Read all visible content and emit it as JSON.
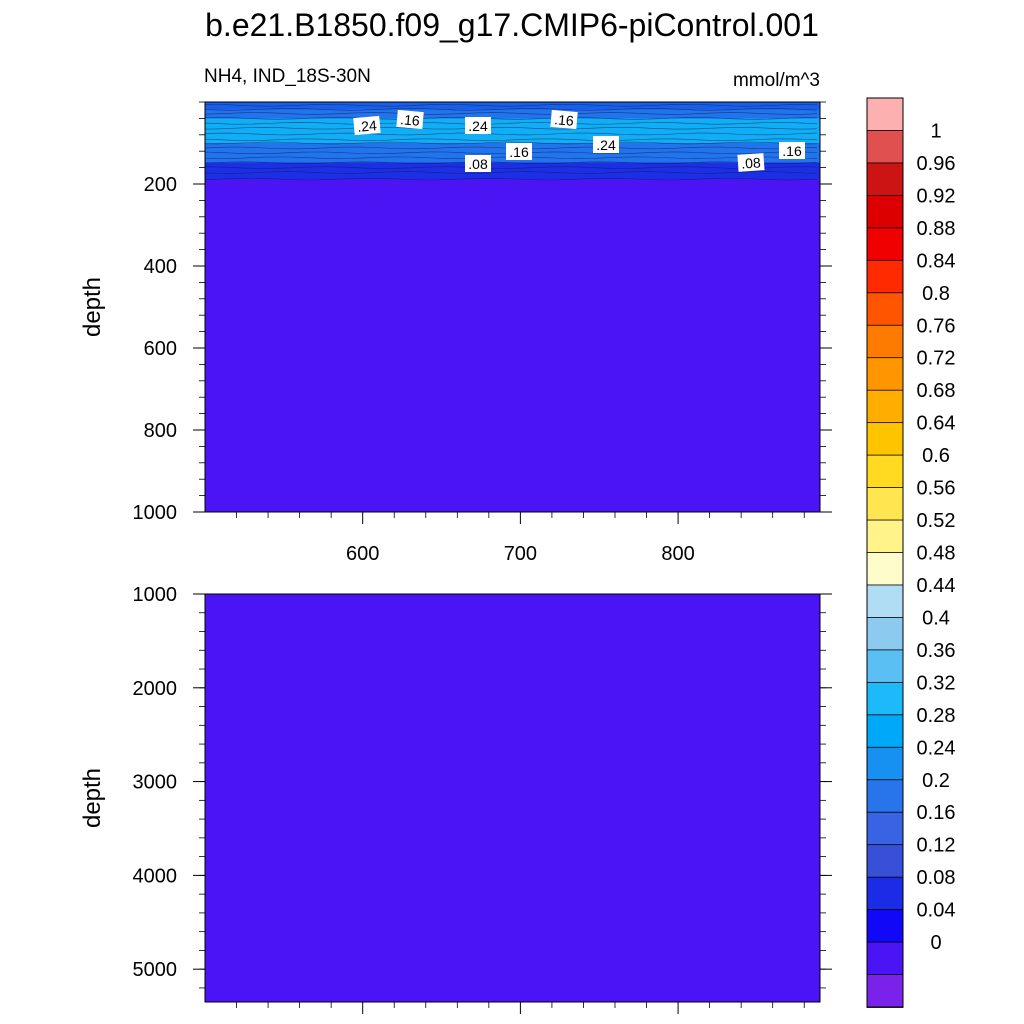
{
  "title": "b.e21.B1850.f09_g17.CMIP6-piControl.001",
  "chart_data": {
    "type": "heatmap",
    "variable_label": "NH4, IND_18S-30N",
    "units_label": "mmol/m^3",
    "colors": {
      "deep_fill": "#4a14f5",
      "mid_band": "#1a2fe6",
      "upper_band": "#2074ee",
      "core_band": "#10aef6",
      "surface_band": "#1860ea",
      "contour_line": "#1a1a40"
    },
    "panels": [
      {
        "name": "upper",
        "ylabel": "depth",
        "ylim": [
          1000,
          0
        ],
        "y_ticks": [
          "200",
          "400",
          "600",
          "800",
          "1000"
        ],
        "x_ticks": [
          "600",
          "700",
          "800"
        ],
        "xlim": [
          500,
          890
        ],
        "contour_labels": [
          ".24",
          ".16",
          ".24",
          ".16",
          ".24",
          ".16",
          ".08",
          ".16",
          ".08",
          ".16"
        ]
      },
      {
        "name": "lower",
        "ylabel": "depth",
        "ylim": [
          5350,
          1000
        ],
        "y_ticks": [
          "1000",
          "2000",
          "3000",
          "4000",
          "5000"
        ],
        "x_ticks": [],
        "xlim": [
          500,
          890
        ],
        "contour_labels": []
      }
    ],
    "colorbar": {
      "labels": [
        "1",
        "0.96",
        "0.92",
        "0.88",
        "0.84",
        "0.8",
        "0.76",
        "0.72",
        "0.68",
        "0.64",
        "0.6",
        "0.56",
        "0.52",
        "0.48",
        "0.44",
        "0.4",
        "0.36",
        "0.32",
        "0.28",
        "0.24",
        "0.2",
        "0.16",
        "0.12",
        "0.08",
        "0.04",
        "0"
      ],
      "colors": [
        "#fdb0b0",
        "#e05050",
        "#cc1414",
        "#dc0000",
        "#f00000",
        "#ff2a00",
        "#ff5500",
        "#ff7a00",
        "#ff9500",
        "#ffae00",
        "#ffc400",
        "#ffda20",
        "#ffe650",
        "#fff38a",
        "#fffccc",
        "#b0ddf4",
        "#8ccaf0",
        "#5ac0f4",
        "#1cbaf8",
        "#00a8f8",
        "#1890f2",
        "#2874ea",
        "#3864e4",
        "#3850d8",
        "#1c2ce6",
        "#1208f8",
        "#4a14f5",
        "#7a22ea"
      ]
    }
  }
}
